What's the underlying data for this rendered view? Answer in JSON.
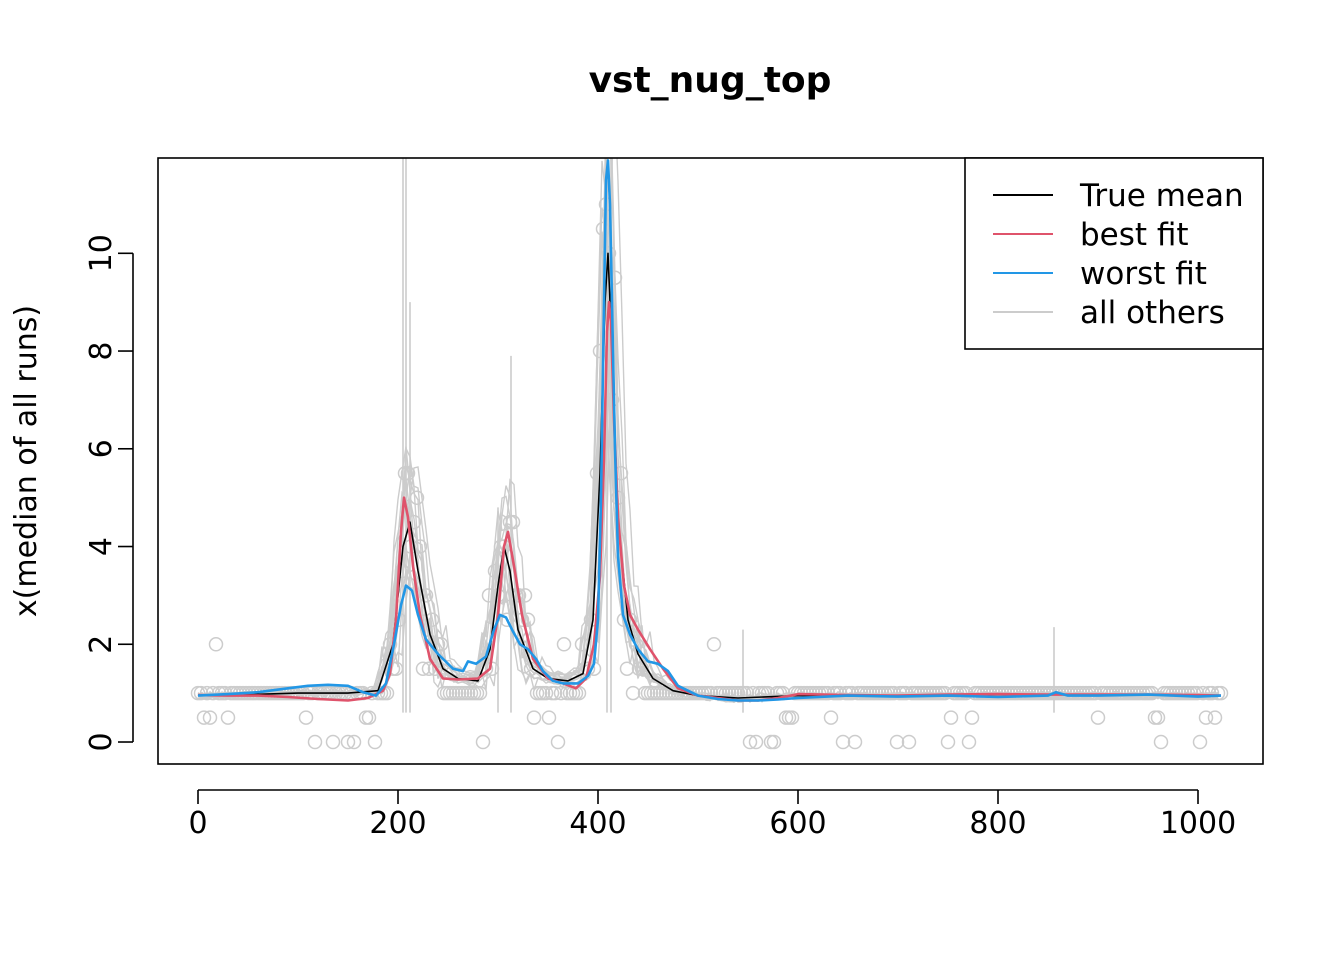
{
  "chart_data": {
    "type": "line",
    "title": "vst_nug_top",
    "xlabel": "",
    "ylabel": "x(median of all runs)",
    "xlim": [
      -40,
      1065
    ],
    "ylim": [
      -0.45,
      11.95
    ],
    "xticks": [
      "0",
      "200",
      "400",
      "600",
      "800",
      "1000"
    ],
    "yticks": [
      "0",
      "2",
      "4",
      "6",
      "8",
      "10"
    ],
    "legend": {
      "position": "top-right",
      "entries": [
        {
          "label": "True mean",
          "color": "#000000"
        },
        {
          "label": "best fit",
          "color": "#DF536B"
        },
        {
          "label": "worst fit",
          "color": "#2297E6"
        },
        {
          "label": "all others",
          "color": "#CCCCCC"
        }
      ]
    },
    "series": [
      {
        "name": "True mean",
        "color": "#000000",
        "x": [
          0,
          50,
          100,
          150,
          180,
          195,
          205,
          212,
          220,
          232,
          245,
          260,
          280,
          292,
          300,
          306,
          312,
          320,
          335,
          350,
          370,
          385,
          395,
          402,
          407,
          410,
          414,
          420,
          430,
          440,
          455,
          475,
          500,
          540,
          600,
          700,
          800,
          900,
          1023
        ],
        "y": [
          0.95,
          0.97,
          1.0,
          1.0,
          1.05,
          2.0,
          4.0,
          4.5,
          3.5,
          2.2,
          1.5,
          1.3,
          1.25,
          1.9,
          3.2,
          4.0,
          3.5,
          2.3,
          1.5,
          1.3,
          1.25,
          1.4,
          2.5,
          5.5,
          9.0,
          10.0,
          8.0,
          4.5,
          2.5,
          1.8,
          1.3,
          1.05,
          0.95,
          0.9,
          0.95,
          0.95,
          0.97,
          0.97,
          0.95
        ]
      },
      {
        "name": "best fit",
        "color": "#DF536B",
        "x": [
          0,
          30,
          60,
          90,
          120,
          150,
          170,
          185,
          192,
          198,
          203,
          206,
          210,
          215,
          222,
          232,
          245,
          260,
          280,
          292,
          300,
          306,
          310,
          316,
          324,
          335,
          350,
          365,
          378,
          388,
          396,
          402,
          406,
          409,
          411,
          413,
          416,
          420,
          426,
          432,
          440,
          452,
          465,
          480,
          500,
          520,
          540,
          560,
          580,
          600,
          650,
          700,
          750,
          800,
          850,
          900,
          950,
          1000,
          1023
        ],
        "y": [
          0.96,
          0.95,
          0.95,
          0.92,
          0.88,
          0.85,
          0.9,
          1.05,
          1.4,
          2.5,
          4.3,
          5.0,
          4.6,
          3.6,
          2.6,
          1.7,
          1.3,
          1.28,
          1.3,
          1.5,
          2.6,
          4.0,
          4.3,
          3.6,
          2.6,
          1.7,
          1.3,
          1.2,
          1.1,
          1.3,
          2.0,
          3.4,
          5.8,
          8.4,
          9.0,
          8.6,
          6.6,
          4.6,
          3.2,
          2.6,
          2.3,
          1.9,
          1.5,
          1.1,
          0.95,
          0.9,
          0.85,
          0.85,
          0.9,
          0.98,
          0.96,
          0.95,
          0.97,
          0.98,
          0.97,
          0.97,
          0.97,
          0.96,
          0.95
        ]
      },
      {
        "name": "worst fit",
        "color": "#2297E6",
        "x": [
          0,
          30,
          60,
          90,
          110,
          130,
          150,
          165,
          178,
          188,
          196,
          203,
          208,
          214,
          220,
          228,
          240,
          255,
          265,
          270,
          278,
          288,
          296,
          302,
          308,
          314,
          322,
          330,
          338,
          345,
          355,
          365,
          380,
          390,
          396,
          400,
          403,
          406,
          408,
          410,
          412,
          414,
          417,
          420,
          425,
          432,
          440,
          450,
          460,
          470,
          480,
          500,
          520,
          540,
          560,
          580,
          600,
          650,
          700,
          750,
          800,
          850,
          858,
          870,
          900,
          950,
          1000,
          1023
        ],
        "y": [
          0.95,
          0.98,
          1.02,
          1.1,
          1.15,
          1.17,
          1.15,
          1.02,
          0.95,
          1.2,
          2.0,
          2.8,
          3.2,
          3.1,
          2.6,
          2.1,
          1.8,
          1.5,
          1.45,
          1.65,
          1.6,
          1.75,
          2.3,
          2.6,
          2.55,
          2.3,
          2.0,
          1.9,
          1.7,
          1.45,
          1.25,
          1.2,
          1.2,
          1.35,
          1.6,
          2.5,
          5.0,
          9.0,
          11.5,
          11.9,
          11.0,
          9.0,
          6.0,
          3.8,
          2.6,
          2.2,
          1.9,
          1.65,
          1.6,
          1.45,
          1.15,
          0.95,
          0.88,
          0.85,
          0.85,
          0.87,
          0.9,
          0.95,
          0.93,
          0.95,
          0.92,
          0.95,
          1.02,
          0.95,
          0.95,
          0.97,
          0.93,
          0.95
        ]
      }
    ]
  }
}
